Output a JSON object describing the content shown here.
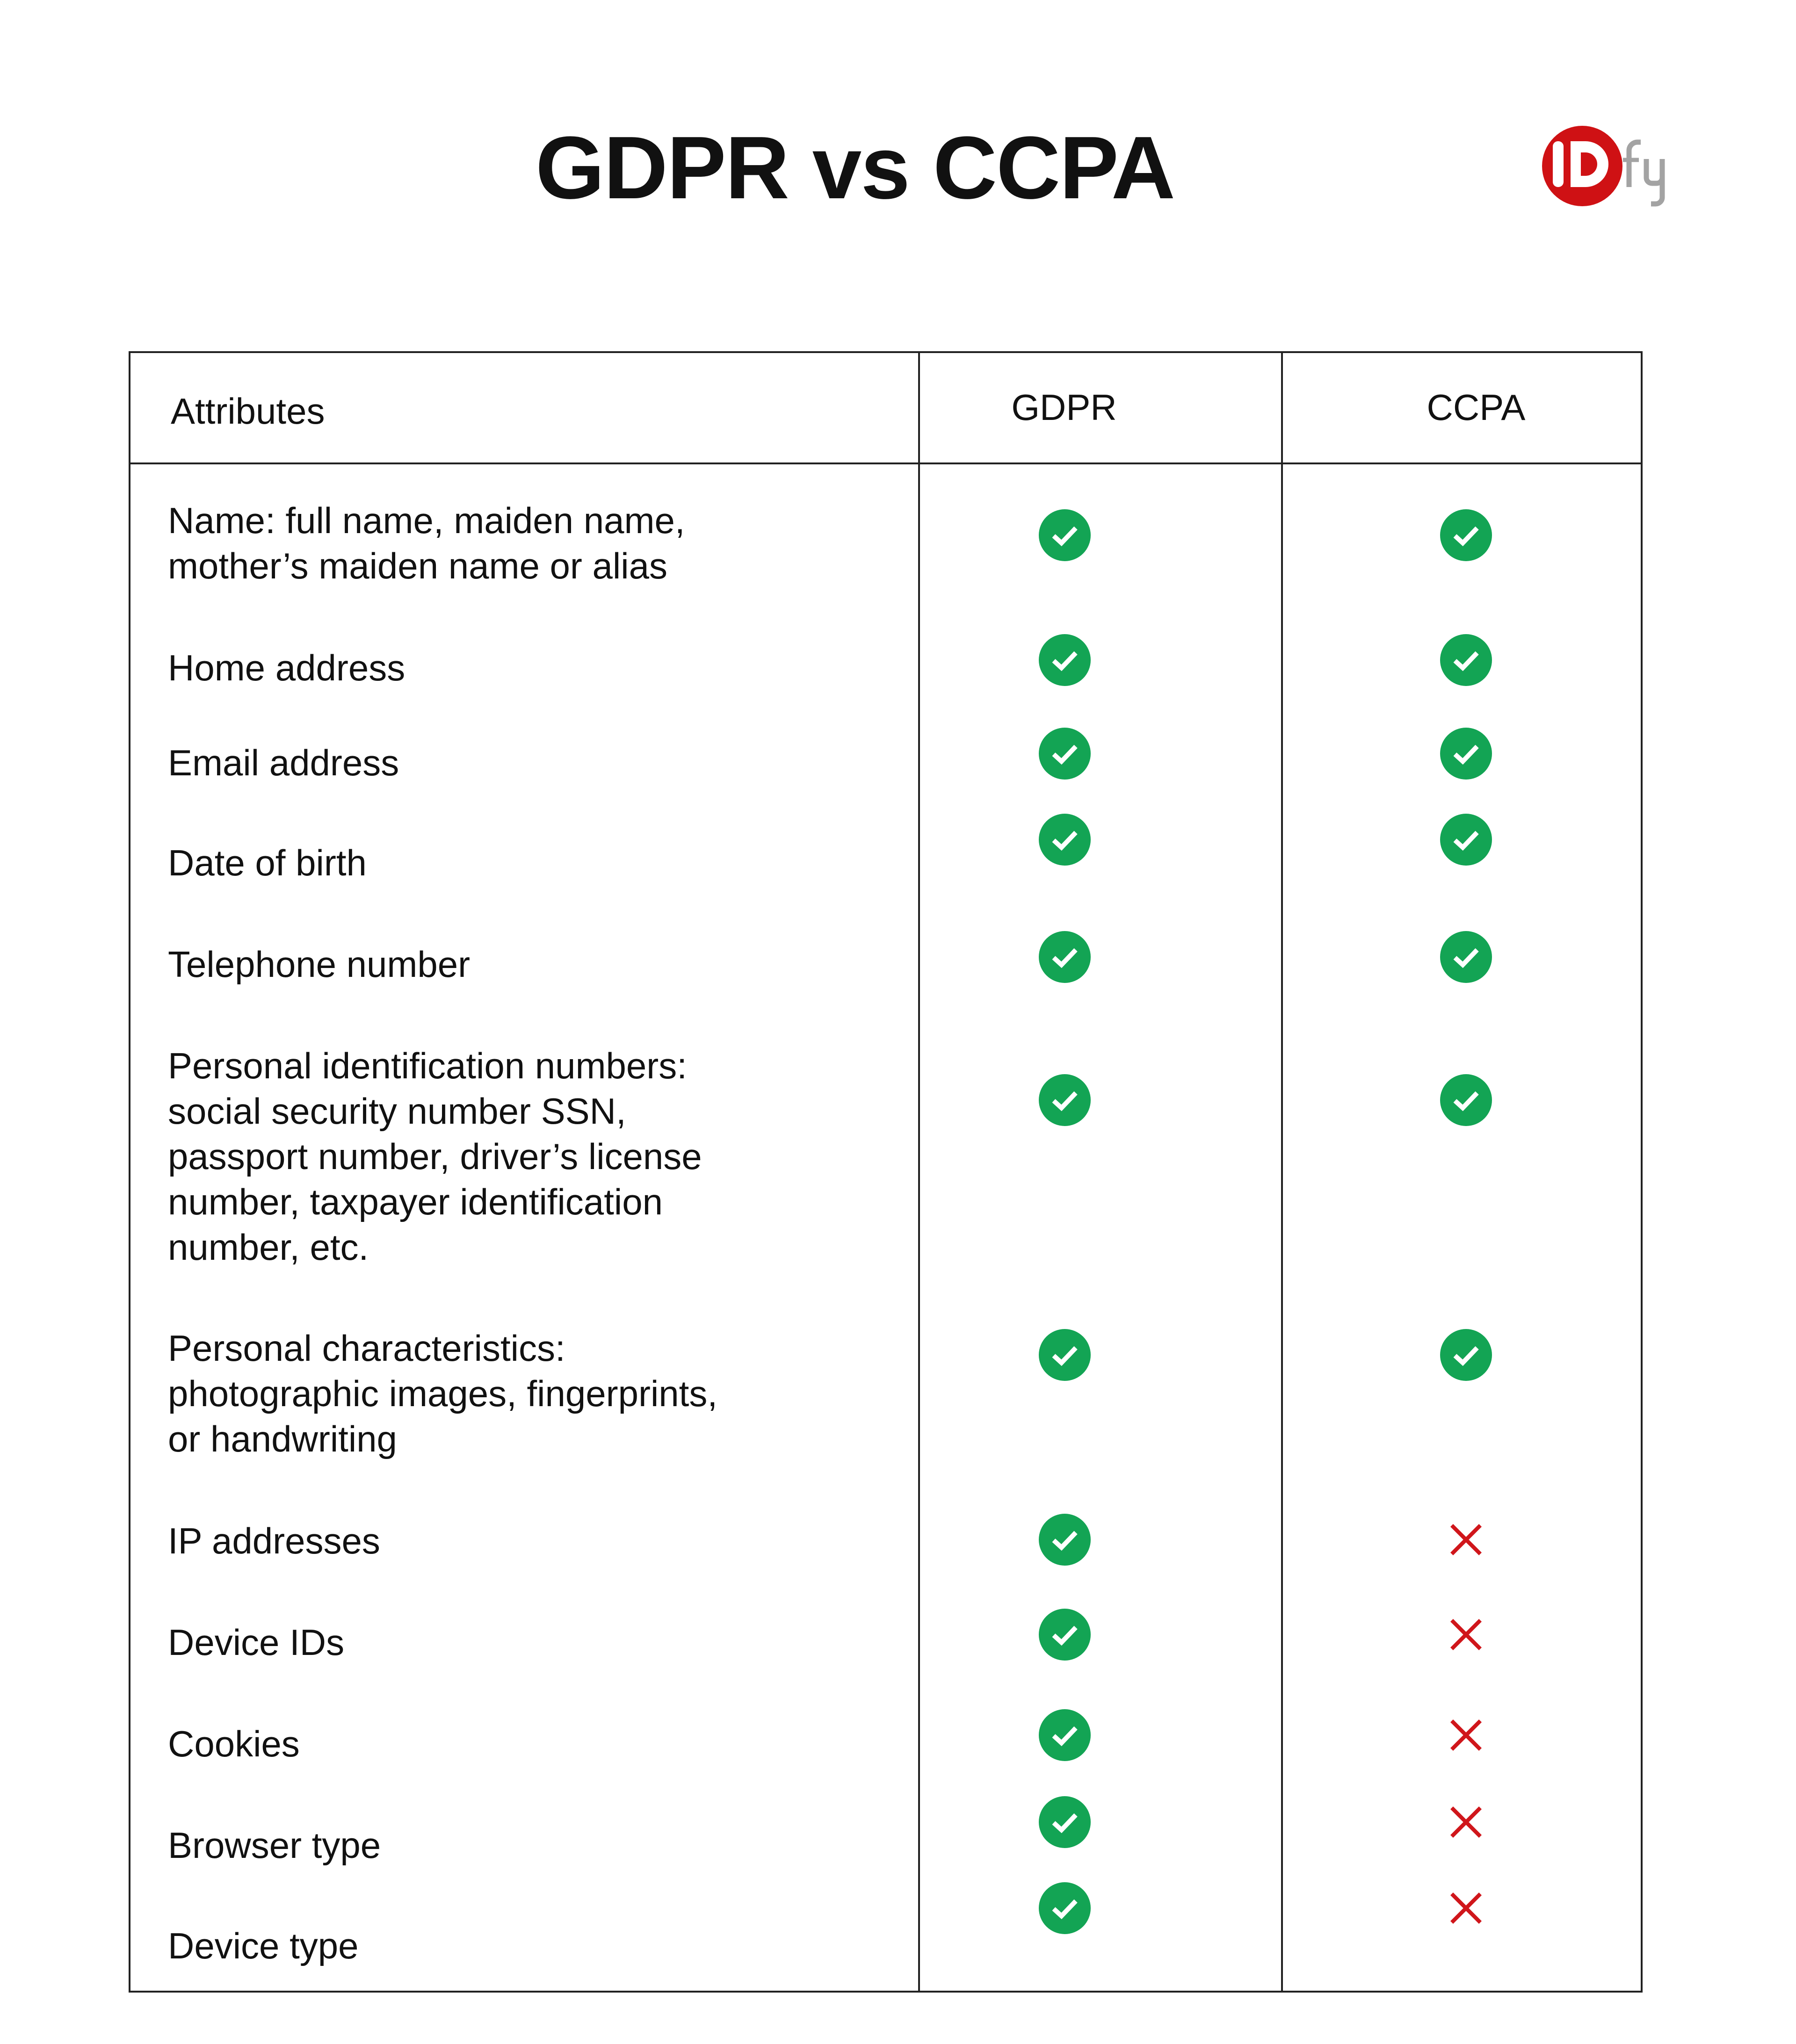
{
  "title": "GDPR vs CCPA",
  "logo": {
    "text": "IDfy",
    "primary_color": "#cf1114",
    "secondary_color": "#a3a3a3"
  },
  "colors": {
    "check": "#13a454",
    "cross": "#d0161b"
  },
  "table": {
    "headers": [
      "Attributes",
      "GDPR",
      "CCPA"
    ],
    "rows": [
      {
        "label": "Name: full name, maiden name,\nmother’s maiden name or alias",
        "gdpr": true,
        "ccpa": true
      },
      {
        "label": "Home address",
        "gdpr": true,
        "ccpa": true
      },
      {
        "label": "Email address",
        "gdpr": true,
        "ccpa": true
      },
      {
        "label": "Date of birth",
        "gdpr": true,
        "ccpa": true
      },
      {
        "label": "Telephone number",
        "gdpr": true,
        "ccpa": true
      },
      {
        "label": "Personal identification numbers:\nsocial security number SSN,\npassport number, driver’s license\nnumber, taxpayer identification\nnumber, etc.",
        "gdpr": true,
        "ccpa": true
      },
      {
        "label": "Personal characteristics:\nphotographic images, fingerprints,\nor handwriting",
        "gdpr": true,
        "ccpa": true
      },
      {
        "label": "IP addresses",
        "gdpr": true,
        "ccpa": false
      },
      {
        "label": "Device IDs",
        "gdpr": true,
        "ccpa": false
      },
      {
        "label": "Cookies",
        "gdpr": true,
        "ccpa": false
      },
      {
        "label": "Browser type",
        "gdpr": true,
        "ccpa": false
      },
      {
        "label": "Device type",
        "gdpr": true,
        "ccpa": false
      }
    ]
  }
}
